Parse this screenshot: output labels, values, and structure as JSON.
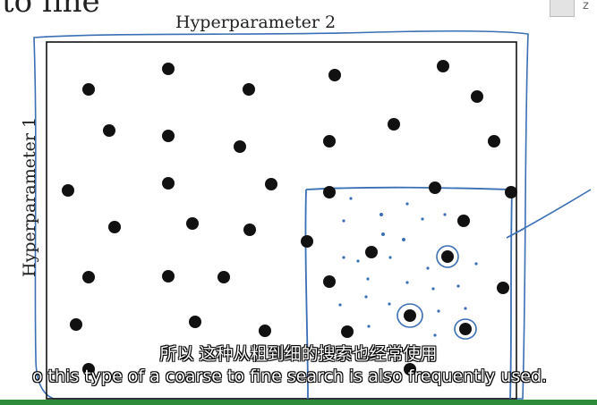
{
  "slide": {
    "title_partial": "to fine",
    "axis_top_label": "Hyperparameter 2",
    "axis_left_label": "Hyperparameter 1"
  },
  "subtitles": {
    "chinese": "所以 这种从粗到细的搜索也经常使用",
    "english": "o this type of a coarse to fine search is also frequently used."
  },
  "corner": {
    "letter": "z"
  },
  "colors": {
    "ink": "#111111",
    "pen": "#3a6fb5",
    "subtitle_text": "#ffffff",
    "bottom_bar": "#2e8b3a"
  }
}
